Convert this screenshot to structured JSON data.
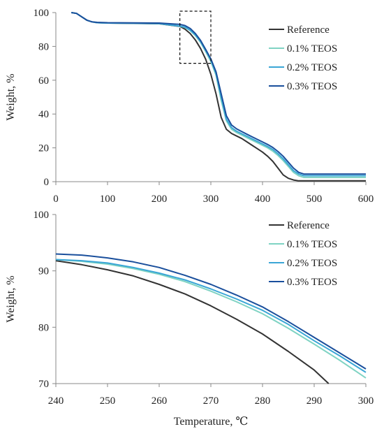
{
  "chart_data": [
    {
      "type": "line",
      "xlabel": "",
      "ylabel": "Weight, %",
      "xlim": [
        0,
        600
      ],
      "ylim": [
        0,
        100
      ],
      "xticks": [
        0,
        100,
        200,
        300,
        400,
        500,
        600
      ],
      "yticks": [
        0,
        20,
        40,
        60,
        80,
        100
      ],
      "grid": false,
      "legend": "top-right",
      "zoom_box": {
        "x": [
          240,
          300
        ],
        "y": [
          70,
          100
        ]
      },
      "series": [
        {
          "name": "Reference",
          "color": "#333333",
          "x": [
            30,
            40,
            50,
            60,
            70,
            80,
            100,
            150,
            200,
            240,
            250,
            260,
            270,
            280,
            290,
            300,
            310,
            320,
            330,
            340,
            350,
            360,
            370,
            380,
            390,
            400,
            410,
            420,
            430,
            440,
            450,
            460,
            470,
            480,
            490,
            500,
            550,
            600
          ],
          "y": [
            100,
            99.5,
            97.5,
            95.5,
            94.5,
            94,
            93.8,
            93.6,
            93.4,
            91.8,
            90.2,
            87.6,
            83.8,
            78.8,
            72.4,
            63.5,
            52,
            38,
            31,
            28.5,
            27,
            25.5,
            23.5,
            21.5,
            19.5,
            17.5,
            15,
            12,
            8,
            4,
            2,
            1,
            0.5,
            0.5,
            0.5,
            0.5,
            0.5,
            0.5
          ]
        },
        {
          "name": "0.1% TEOS",
          "color": "#7fd3c3",
          "x": [
            30,
            40,
            50,
            60,
            70,
            80,
            100,
            150,
            200,
            240,
            250,
            260,
            270,
            280,
            290,
            300,
            310,
            320,
            330,
            340,
            350,
            360,
            370,
            380,
            390,
            400,
            410,
            420,
            430,
            440,
            450,
            460,
            470,
            480,
            490,
            500,
            550,
            600
          ],
          "y": [
            100,
            99.5,
            97.5,
            95.5,
            94.5,
            94,
            93.8,
            93.7,
            93.5,
            92,
            91.2,
            89.4,
            86.4,
            82.4,
            77,
            71,
            63,
            48,
            36,
            31,
            29,
            27.5,
            26,
            24.5,
            23,
            21.5,
            20,
            18,
            15.5,
            12.5,
            9,
            5.5,
            3.5,
            2.5,
            2.5,
            2.5,
            2.5,
            2.5
          ]
        },
        {
          "name": "0.2% TEOS",
          "color": "#3aa6d6",
          "x": [
            30,
            40,
            50,
            60,
            70,
            80,
            100,
            150,
            200,
            240,
            250,
            260,
            270,
            280,
            290,
            300,
            310,
            320,
            330,
            340,
            350,
            360,
            370,
            380,
            390,
            400,
            410,
            420,
            430,
            440,
            450,
            460,
            470,
            480,
            490,
            500,
            550,
            600
          ],
          "y": [
            100,
            99.5,
            97.5,
            95.5,
            94.5,
            94,
            93.8,
            93.7,
            93.5,
            92,
            91.4,
            89.6,
            86.8,
            83,
            77.6,
            72,
            64,
            50,
            37,
            32,
            29.8,
            28.3,
            26.8,
            25.3,
            23.8,
            22.3,
            20.8,
            19,
            16.5,
            13.5,
            10,
            6.5,
            4.5,
            3.5,
            3.5,
            3.5,
            3.5,
            3.5
          ]
        },
        {
          "name": "0.3% TEOS",
          "color": "#1a4f9c",
          "x": [
            30,
            40,
            50,
            60,
            70,
            80,
            100,
            150,
            200,
            240,
            250,
            260,
            270,
            280,
            290,
            300,
            310,
            320,
            330,
            340,
            350,
            360,
            370,
            380,
            390,
            400,
            410,
            420,
            430,
            440,
            450,
            460,
            470,
            480,
            490,
            500,
            550,
            600
          ],
          "y": [
            100,
            99.5,
            97.5,
            95.5,
            94.5,
            94.2,
            94,
            93.9,
            93.8,
            93,
            92.3,
            90.6,
            87.6,
            83.6,
            78.2,
            72.6,
            65,
            52,
            39,
            33.5,
            31.2,
            29.6,
            28,
            26.5,
            25,
            23.5,
            22,
            20.2,
            17.8,
            15,
            11.5,
            8,
            5.5,
            4.5,
            4.5,
            4.5,
            4.5,
            4.5
          ]
        }
      ]
    },
    {
      "type": "line",
      "xlabel": "Temperature, ℃",
      "ylabel": "Weight, %",
      "xlim": [
        240,
        300
      ],
      "ylim": [
        70,
        100
      ],
      "xticks": [
        240,
        250,
        260,
        270,
        280,
        290,
        300
      ],
      "yticks": [
        70,
        80,
        90,
        100
      ],
      "grid": false,
      "legend": "top-right",
      "series": [
        {
          "name": "Reference",
          "color": "#333333",
          "x": [
            240,
            245,
            250,
            255,
            260,
            265,
            270,
            275,
            280,
            285,
            290,
            292.8
          ],
          "y": [
            91.8,
            91.1,
            90.2,
            89.1,
            87.6,
            85.9,
            83.8,
            81.4,
            78.8,
            75.7,
            72.4,
            70
          ]
        },
        {
          "name": "0.1% TEOS",
          "color": "#7fd3c3",
          "x": [
            240,
            245,
            250,
            255,
            260,
            265,
            270,
            275,
            280,
            285,
            290,
            295,
            300
          ],
          "y": [
            92.0,
            91.7,
            91.2,
            90.4,
            89.4,
            88.1,
            86.4,
            84.5,
            82.4,
            79.8,
            77.0,
            74.1,
            71.0
          ]
        },
        {
          "name": "0.2% TEOS",
          "color": "#3aa6d6",
          "x": [
            240,
            245,
            250,
            255,
            260,
            265,
            270,
            275,
            280,
            285,
            290,
            295,
            300
          ],
          "y": [
            92.0,
            91.8,
            91.4,
            90.6,
            89.6,
            88.4,
            86.8,
            85.0,
            83.0,
            80.5,
            77.6,
            74.9,
            72.0
          ]
        },
        {
          "name": "0.3% TEOS",
          "color": "#1a4f9c",
          "x": [
            240,
            245,
            250,
            255,
            260,
            265,
            270,
            275,
            280,
            285,
            290,
            295,
            300
          ],
          "y": [
            93.0,
            92.8,
            92.3,
            91.6,
            90.6,
            89.2,
            87.6,
            85.7,
            83.6,
            81.0,
            78.2,
            75.4,
            72.6
          ]
        }
      ]
    }
  ]
}
